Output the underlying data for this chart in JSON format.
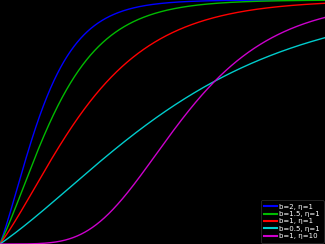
{
  "background_color": "#000000",
  "x_min": 0,
  "x_max": 5,
  "y_min": 0,
  "y_max": 1,
  "curves": [
    {
      "b": 2.0,
      "eta": 1.0,
      "color": "#0000ff",
      "label": "b=2, η=1"
    },
    {
      "b": 1.5,
      "eta": 1.0,
      "color": "#00bb00",
      "label": "b=1.5, η=1"
    },
    {
      "b": 1.0,
      "eta": 1.0,
      "color": "#ff0000",
      "label": "b=1, η=1"
    },
    {
      "b": 0.5,
      "eta": 1.0,
      "color": "#00cccc",
      "label": "b=0.5, η=1"
    },
    {
      "b": 1.0,
      "eta": 10.0,
      "color": "#cc00cc",
      "label": "b=1, η=10"
    }
  ],
  "linewidth": 1.0,
  "legend_fontsize": 5.0,
  "legend_text_color": "#ffffff",
  "legend_bg_color": "#000000",
  "figsize": [
    3.25,
    2.44
  ],
  "dpi": 100
}
